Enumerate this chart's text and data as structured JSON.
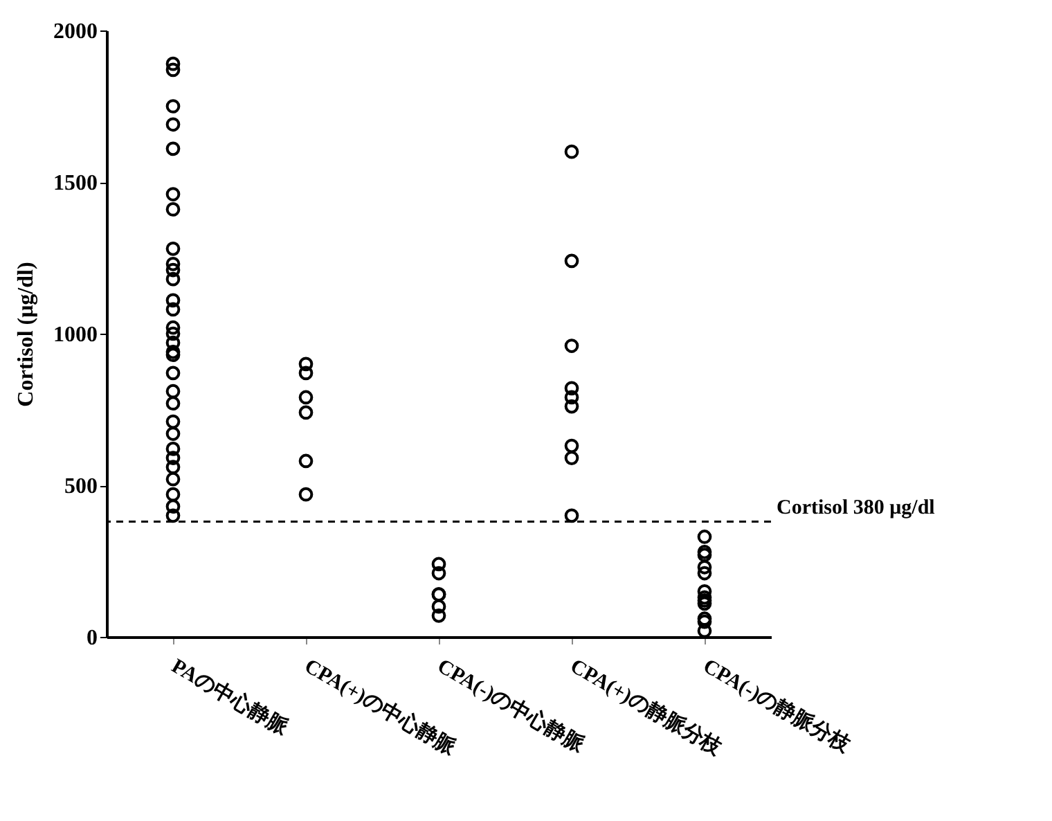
{
  "chart_data": {
    "type": "scatter",
    "ylabel": "Cortisol (μg/dl)",
    "categories": [
      "PAの中心静脈",
      "CPA(+)の中心静脈",
      "CPA(-)の中心静脈",
      "CPA(+)の静脈分枝",
      "CPA(-)の静脈分枝"
    ],
    "series": [
      {
        "color": "#000000",
        "x": [
          "PAの中心静脈",
          "PAの中心静脈",
          "PAの中心静脈",
          "PAの中心静脈",
          "PAの中心静脈",
          "PAの中心静脈",
          "PAの中心静脈",
          "PAの中心静脈",
          "PAの中心静脈",
          "PAの中心静脈",
          "PAの中心静脈",
          "PAの中心静脈",
          "PAの中心静脈",
          "PAの中心静脈",
          "PAの中心静脈",
          "PAの中心静脈",
          "PAの中心静脈",
          "PAの中心静脈",
          "PAの中心静脈",
          "PAの中心静脈",
          "PAの中心静脈",
          "PAの中心静脈",
          "PAの中心静脈",
          "PAの中心静脈",
          "PAの中心静脈",
          "PAの中心静脈",
          "PAの中心静脈",
          "PAの中心静脈",
          "PAの中心静脈",
          "PAの中心静脈",
          "CPA(+)の中心静脈",
          "CPA(+)の中心静脈",
          "CPA(+)の中心静脈",
          "CPA(+)の中心静脈",
          "CPA(+)の中心静脈",
          "CPA(+)の中心静脈",
          "CPA(-)の中心静脈",
          "CPA(-)の中心静脈",
          "CPA(-)の中心静脈",
          "CPA(-)の中心静脈",
          "CPA(-)の中心静脈",
          "CPA(-)の中心静脈",
          "CPA(+)の静脈分枝",
          "CPA(+)の静脈分枝",
          "CPA(+)の静脈分枝",
          "CPA(+)の静脈分枝",
          "CPA(+)の静脈分枝",
          "CPA(+)の静脈分枝",
          "CPA(+)の静脈分枝",
          "CPA(+)の静脈分枝",
          "CPA(+)の静脈分枝",
          "CPA(-)の静脈分枝",
          "CPA(-)の静脈分枝",
          "CPA(-)の静脈分枝",
          "CPA(-)の静脈分枝",
          "CPA(-)の静脈分枝",
          "CPA(-)の静脈分枝",
          "CPA(-)の静脈分枝",
          "CPA(-)の静脈分枝",
          "CPA(-)の静脈分枝",
          "CPA(-)の静脈分枝",
          "CPA(-)の静脈分枝",
          "CPA(-)の静脈分枝"
        ],
        "values": [
          1890,
          1870,
          1750,
          1690,
          1610,
          1460,
          1410,
          1280,
          1230,
          1210,
          1180,
          1110,
          1080,
          1020,
          970,
          930,
          870,
          810,
          770,
          710,
          670,
          620,
          560,
          520,
          470,
          430,
          400,
          1000,
          940,
          590,
          900,
          870,
          790,
          740,
          580,
          470,
          240,
          210,
          140,
          140,
          100,
          70,
          1600,
          1240,
          960,
          820,
          790,
          760,
          630,
          590,
          400,
          330,
          280,
          270,
          230,
          210,
          150,
          130,
          110,
          120,
          60,
          50,
          20
        ]
      }
    ],
    "ylim": [
      0,
      2000
    ],
    "yticks": [
      0,
      500,
      1000,
      1500,
      2000
    ],
    "ref_lines": [
      {
        "axis": "y",
        "value": 380,
        "label": "Cortisol 380 μg/dl",
        "line_style": "dashed"
      }
    ],
    "marker": "circle",
    "grid": false,
    "legend": false
  }
}
